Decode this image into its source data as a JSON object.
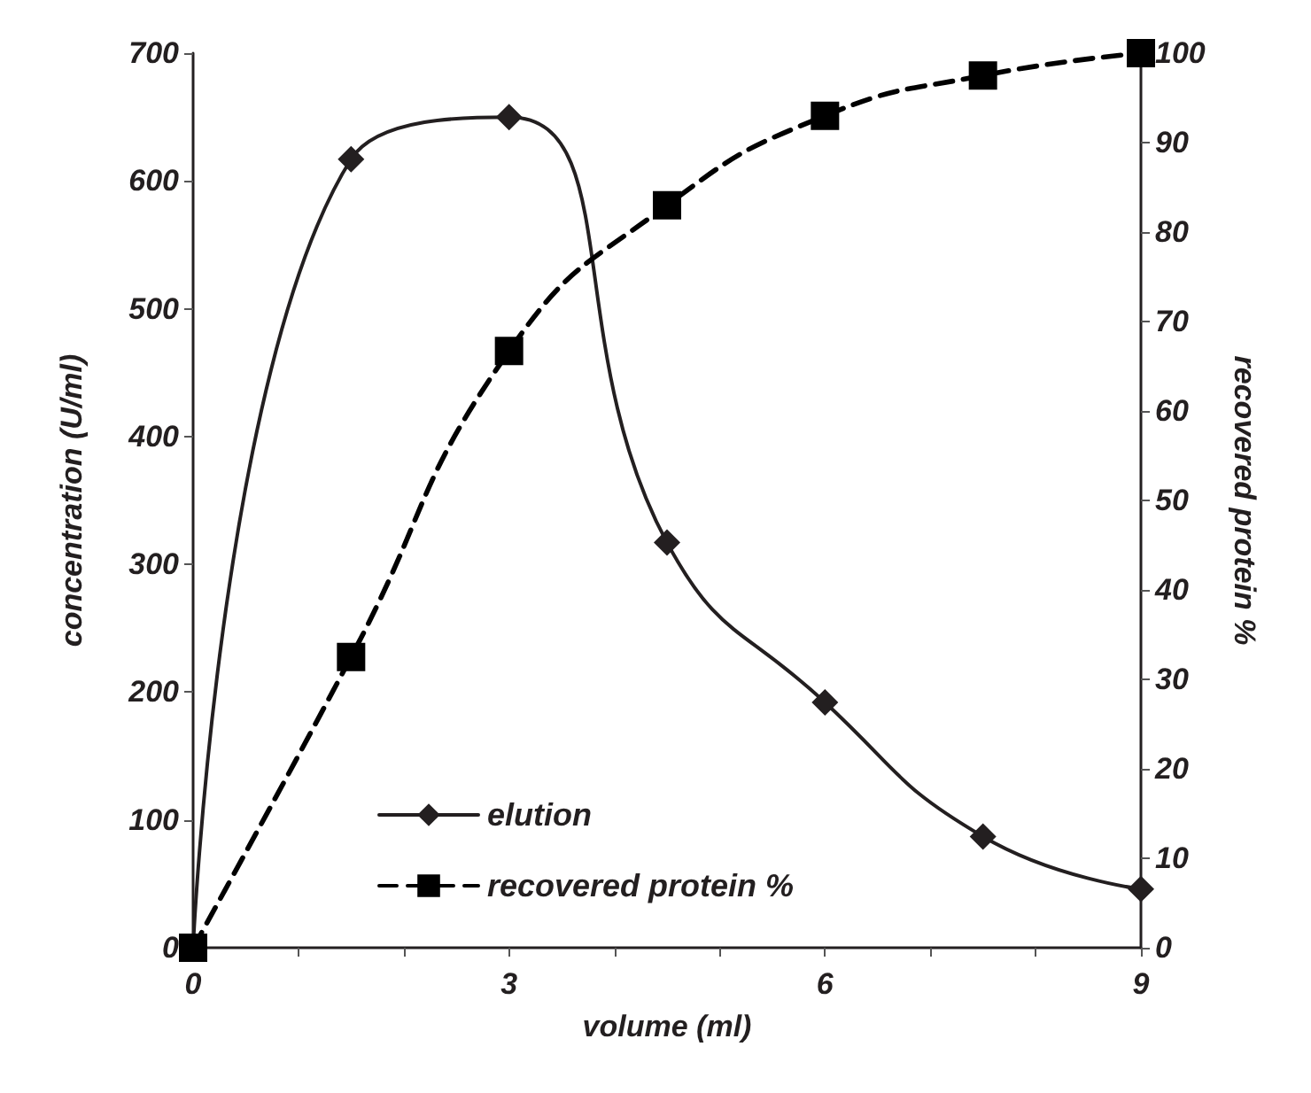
{
  "chart_data": {
    "type": "line",
    "xlabel": "volume (ml)",
    "ylabel": "concentration (U/ml)",
    "y2label": "recovered protein %",
    "x": [
      0,
      1.5,
      3,
      4.5,
      6,
      7.5,
      9
    ],
    "series": [
      {
        "name": "elution",
        "color": "#231f20",
        "values": [
          0,
          617,
          650,
          317,
          192,
          87,
          46
        ],
        "marker": "diamond",
        "line_style": "solid"
      },
      {
        "name": "recovered protein %",
        "color": "#000000",
        "values": [
          0,
          32.5,
          66.7,
          83,
          93,
          97.5,
          100
        ],
        "marker": "square",
        "line_style": "dashed",
        "axis": "y2"
      }
    ],
    "xlim": [
      0,
      9
    ],
    "xticks": [
      0,
      {
        "value": 1,
        "label": null
      },
      {
        "value": 2,
        "label": null
      },
      3,
      {
        "value": 4,
        "label": null
      },
      {
        "value": 5,
        "label": null
      },
      6,
      {
        "value": 7,
        "label": null
      },
      {
        "value": 8,
        "label": null
      },
      9
    ],
    "ylim": [
      0,
      700
    ],
    "yticks": [
      0,
      100,
      200,
      300,
      400,
      500,
      600,
      700
    ],
    "y2lim": [
      0,
      100
    ],
    "y2ticks": [
      0,
      10,
      20,
      30,
      40,
      50,
      60,
      70,
      80,
      90,
      100
    ],
    "grid": false,
    "legend": "bottom left"
  }
}
